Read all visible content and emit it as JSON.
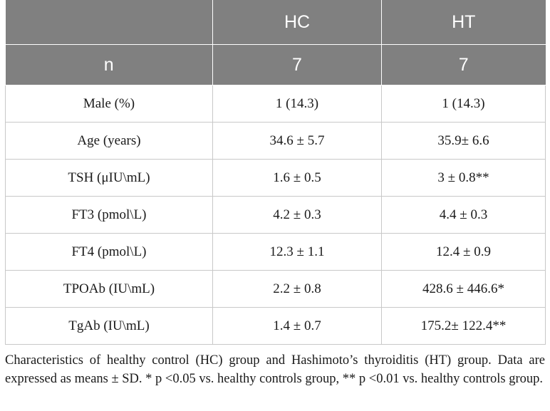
{
  "table": {
    "header": [
      "",
      "HC",
      "HT"
    ],
    "n_row": [
      "n",
      "7",
      "7"
    ],
    "rows": [
      [
        "Male (%)",
        "1 (14.3)",
        "1 (14.3)"
      ],
      [
        "Age (years)",
        "34.6 ± 5.7",
        "35.9± 6.6"
      ],
      [
        "TSH (μIU\\mL)",
        "1.6 ± 0.5",
        "3 ± 0.8**"
      ],
      [
        "FT3 (pmol\\L)",
        "4.2 ± 0.3",
        "4.4 ± 0.3"
      ],
      [
        "FT4 (pmol\\L)",
        "12.3 ± 1.1",
        "12.4 ± 0.9"
      ],
      [
        "TPOAb (IU\\mL)",
        "2.2 ± 0.8",
        "428.6 ± 446.6*"
      ],
      [
        "TgAb (IU\\mL)",
        "1.4 ± 0.7",
        "175.2± 122.4**"
      ]
    ]
  },
  "caption": "Characteristics of healthy control (HC) group and Hashimoto’s thyroiditis (HT) group. Data are expressed as means ± SD. * p <0.05 vs. healthy controls group, ** p <0.01 vs. healthy controls group.",
  "colors": {
    "header_bg": "#808080",
    "header_text": "#ffffff",
    "border": "#c8c8c8"
  }
}
